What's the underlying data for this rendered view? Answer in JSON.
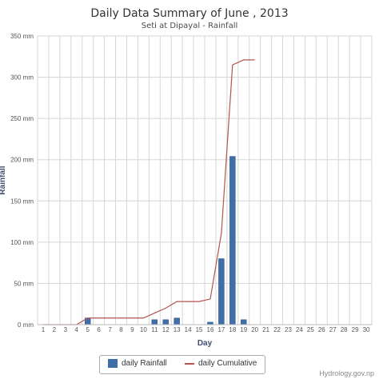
{
  "colors": {
    "bar": "#3f6ea8",
    "line": "#b45450",
    "grid": "#d6d6d6"
  },
  "credit": "Hydrology.gov.np",
  "chart_data": {
    "type": "bar",
    "title": "Daily Data Summary of June , 2013",
    "subtitle": "Seti at Dipayal - Rainfall",
    "xlabel": "Day",
    "ylabel": "Rainfall",
    "ylim": [
      0,
      350
    ],
    "yticks": [
      0,
      50,
      100,
      150,
      200,
      250,
      300,
      350
    ],
    "ytick_labels": [
      "0 mm",
      "50 mm",
      "100 mm",
      "150 mm",
      "200 mm",
      "250 mm",
      "300 mm",
      "350 mm"
    ],
    "categories": [
      "1",
      "2",
      "3",
      "4",
      "5",
      "6",
      "7",
      "8",
      "9",
      "10",
      "11",
      "12",
      "13",
      "14",
      "15",
      "16",
      "17",
      "18",
      "19",
      "20",
      "21",
      "22",
      "23",
      "24",
      "25",
      "26",
      "27",
      "28",
      "29",
      "30"
    ],
    "grid": true,
    "legend_position": "bottom-center",
    "series": [
      {
        "name": "daily Rainfall",
        "type": "bar",
        "values": [
          0,
          0,
          0,
          0,
          8,
          0,
          0,
          0,
          0,
          0,
          6,
          6,
          8,
          0,
          0,
          3,
          80,
          204,
          6,
          0,
          0,
          0,
          0,
          0,
          0,
          0,
          0,
          0,
          0,
          0
        ]
      },
      {
        "name": "daily Cumulative",
        "type": "line",
        "values": [
          0,
          0,
          0,
          0,
          8,
          8,
          8,
          8,
          8,
          8,
          14,
          20,
          28,
          28,
          28,
          31,
          111,
          315,
          321,
          321,
          null,
          null,
          null,
          null,
          null,
          null,
          null,
          null,
          null,
          null
        ]
      }
    ]
  }
}
